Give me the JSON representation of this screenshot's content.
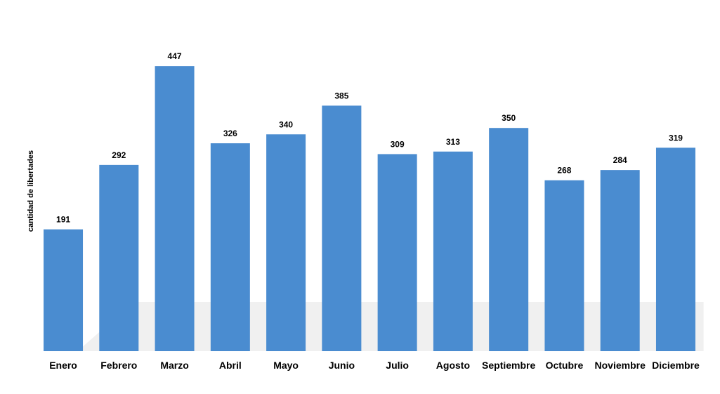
{
  "chart_data": {
    "type": "bar",
    "y_label": "cantidad de libertades",
    "categories": [
      "Enero",
      "Febrero",
      "Marzo",
      "Abril",
      "Mayo",
      "Junio",
      "Julio",
      "Agosto",
      "Septiembre",
      "Octubre",
      "Noviembre",
      "Diciembre"
    ],
    "values": [
      191,
      292,
      447,
      326,
      340,
      385,
      309,
      313,
      350,
      268,
      284,
      319
    ],
    "color": "#4a8cd0",
    "ylim": [
      0,
      500
    ],
    "data_labels": true
  }
}
